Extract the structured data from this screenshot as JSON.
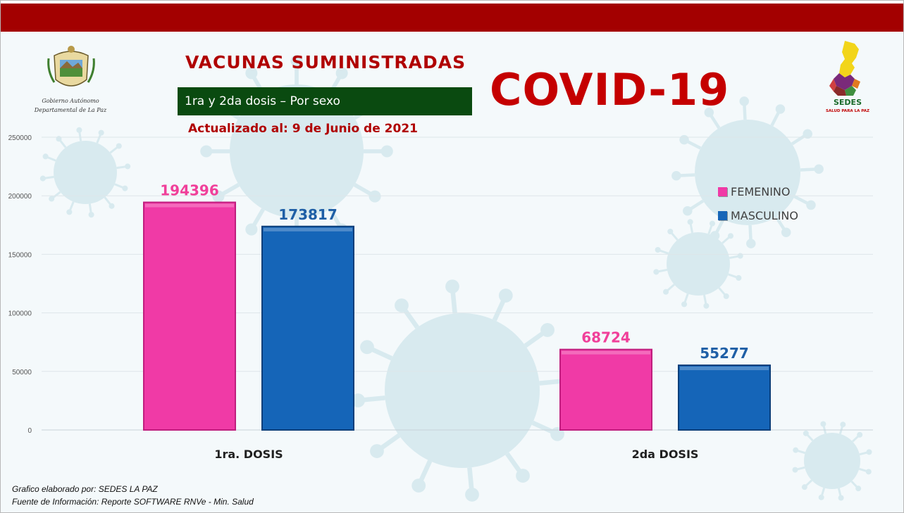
{
  "header": {
    "title": "VACUNAS SUMINISTRADAS",
    "subtitle": "1ra y 2da dosis – Por sexo",
    "updated": "Actualizado al: 9 de Junio de 2021",
    "covid_label": "COVID-19"
  },
  "logos": {
    "left_caption_line1": "Gobierno Autónomo",
    "left_caption_line2": "Departamental de La Paz",
    "right_name": "SEDES",
    "right_tagline": "SALUD PARA LA PAZ"
  },
  "footer": {
    "line1": "Grafico elaborado por: SEDES LA PAZ",
    "line2": "Fuente de Información: Reporte SOFTWARE RNVe - Min. Salud"
  },
  "colors": {
    "band": "#a30000",
    "femenino": "#f03aa6",
    "masculino": "#1565b8",
    "femenino_label": "#f0409a",
    "masculino_label": "#1f5fa6"
  },
  "chart_data": {
    "type": "bar",
    "categories": [
      "1ra. DOSIS",
      "2da DOSIS"
    ],
    "series": [
      {
        "name": "FEMENINO",
        "values": [
          194396,
          68724
        ]
      },
      {
        "name": "MASCULINO",
        "values": [
          173817,
          55277
        ]
      }
    ],
    "yticks": [
      "0",
      "50000",
      "100000",
      "150000",
      "200000",
      "250000"
    ],
    "ylim": [
      0,
      250000
    ],
    "grid": true,
    "legend": "right"
  }
}
